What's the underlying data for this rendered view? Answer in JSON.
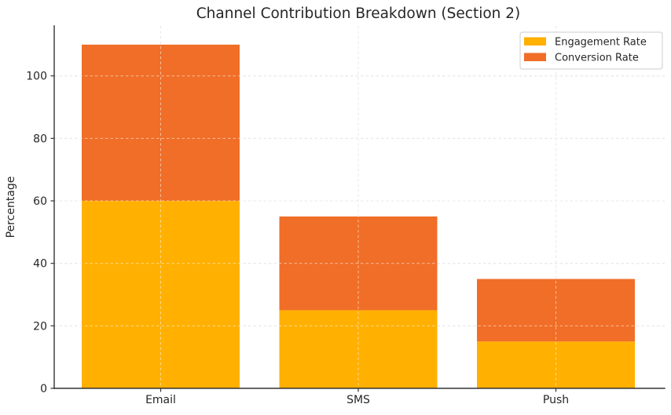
{
  "figure": {
    "background": "#ffffff",
    "text_color": "#262626",
    "axis_color": "#333333",
    "grid_color": "#cccccc",
    "grid_over_bar_color": "rgba(255,255,255,0.55)",
    "legend_border_color": "#cccccc",
    "legend_background": "#ffffff"
  },
  "chart_data": {
    "type": "bar",
    "stacked": true,
    "title": "Channel Contribution Breakdown (Section 2)",
    "xlabel": "",
    "ylabel": "Percentage",
    "categories": [
      "Email",
      "SMS",
      "Push"
    ],
    "series": [
      {
        "name": "Engagement Rate",
        "color": "#FFB000",
        "values": [
          60,
          25,
          15
        ]
      },
      {
        "name": "Conversion Rate",
        "color": "#F06E27",
        "values": [
          50,
          30,
          20
        ]
      }
    ],
    "totals": [
      110,
      55,
      35
    ],
    "ylim": [
      0,
      116
    ],
    "yticks": [
      0,
      20,
      40,
      60,
      80,
      100
    ],
    "grid": true,
    "grid_style": "dashed",
    "legend_position": "upper right"
  }
}
